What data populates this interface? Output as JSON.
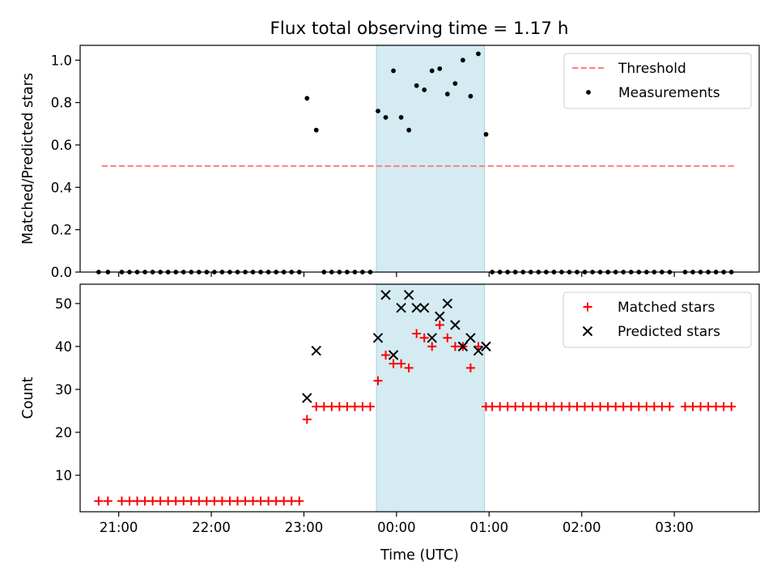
{
  "title": "Flux total observing time = 1.17 h",
  "colors": {
    "threshold": "#ff7f7f",
    "measurement": "#000000",
    "matched": "#ff0000",
    "predicted": "#000000",
    "observing_band": "#add8e6"
  },
  "chart_data": [
    {
      "type": "scatter",
      "panel": "top",
      "ylabel": "Matched/Predicted stars",
      "xlim": [
        "20:35",
        "03:55"
      ],
      "ylim": [
        0,
        1.07
      ],
      "yticks": [
        "0.0",
        "0.2",
        "0.4",
        "0.6",
        "0.8",
        "1.0"
      ],
      "grid": false,
      "legend_position": "top-right",
      "observing_window": [
        "23:47",
        "00:57"
      ],
      "threshold": {
        "name": "Threshold",
        "y": 0.5,
        "x_range": [
          "20:49",
          "03:40"
        ]
      },
      "series": [
        {
          "name": "Measurements",
          "points": [
            [
              "20:47",
              0.0
            ],
            [
              "20:53",
              0.0
            ],
            [
              "21:02",
              0.0
            ],
            [
              "21:07",
              0.0
            ],
            [
              "21:12",
              0.0
            ],
            [
              "21:17",
              0.0
            ],
            [
              "21:22",
              0.0
            ],
            [
              "21:27",
              0.0
            ],
            [
              "21:32",
              0.0
            ],
            [
              "21:37",
              0.0
            ],
            [
              "21:42",
              0.0
            ],
            [
              "21:47",
              0.0
            ],
            [
              "21:52",
              0.0
            ],
            [
              "21:57",
              0.0
            ],
            [
              "22:02",
              0.0
            ],
            [
              "22:07",
              0.0
            ],
            [
              "22:12",
              0.0
            ],
            [
              "22:17",
              0.0
            ],
            [
              "22:22",
              0.0
            ],
            [
              "22:27",
              0.0
            ],
            [
              "22:32",
              0.0
            ],
            [
              "22:37",
              0.0
            ],
            [
              "22:42",
              0.0
            ],
            [
              "22:47",
              0.0
            ],
            [
              "22:52",
              0.0
            ],
            [
              "22:57",
              0.0
            ],
            [
              "23:02",
              0.82
            ],
            [
              "23:08",
              0.67
            ],
            [
              "23:13",
              0.0
            ],
            [
              "23:18",
              0.0
            ],
            [
              "23:23",
              0.0
            ],
            [
              "23:28",
              0.0
            ],
            [
              "23:33",
              0.0
            ],
            [
              "23:38",
              0.0
            ],
            [
              "23:43",
              0.0
            ],
            [
              "23:48",
              0.76
            ],
            [
              "23:53",
              0.73
            ],
            [
              "23:58",
              0.95
            ],
            [
              "00:03",
              0.73
            ],
            [
              "00:08",
              0.67
            ],
            [
              "00:13",
              0.88
            ],
            [
              "00:18",
              0.86
            ],
            [
              "00:23",
              0.95
            ],
            [
              "00:28",
              0.96
            ],
            [
              "00:33",
              0.84
            ],
            [
              "00:38",
              0.89
            ],
            [
              "00:43",
              1.0
            ],
            [
              "00:48",
              0.83
            ],
            [
              "00:53",
              1.03
            ],
            [
              "00:58",
              0.65
            ],
            [
              "01:02",
              0.0
            ],
            [
              "01:07",
              0.0
            ],
            [
              "01:12",
              0.0
            ],
            [
              "01:17",
              0.0
            ],
            [
              "01:22",
              0.0
            ],
            [
              "01:27",
              0.0
            ],
            [
              "01:32",
              0.0
            ],
            [
              "01:37",
              0.0
            ],
            [
              "01:42",
              0.0
            ],
            [
              "01:47",
              0.0
            ],
            [
              "01:52",
              0.0
            ],
            [
              "01:57",
              0.0
            ],
            [
              "02:02",
              0.0
            ],
            [
              "02:07",
              0.0
            ],
            [
              "02:12",
              0.0
            ],
            [
              "02:17",
              0.0
            ],
            [
              "02:22",
              0.0
            ],
            [
              "02:27",
              0.0
            ],
            [
              "02:32",
              0.0
            ],
            [
              "02:37",
              0.0
            ],
            [
              "02:42",
              0.0
            ],
            [
              "02:47",
              0.0
            ],
            [
              "02:52",
              0.0
            ],
            [
              "02:57",
              0.0
            ],
            [
              "03:07",
              0.0
            ],
            [
              "03:12",
              0.0
            ],
            [
              "03:17",
              0.0
            ],
            [
              "03:22",
              0.0
            ],
            [
              "03:27",
              0.0
            ],
            [
              "03:32",
              0.0
            ],
            [
              "03:37",
              0.0
            ]
          ]
        }
      ]
    },
    {
      "type": "scatter",
      "panel": "bottom",
      "xlabel": "Time (UTC)",
      "ylabel": "Count",
      "xlim": [
        "20:35",
        "03:55"
      ],
      "ylim": [
        1.5,
        54.5
      ],
      "xticks": [
        "21:00",
        "22:00",
        "23:00",
        "00:00",
        "01:00",
        "02:00",
        "03:00"
      ],
      "yticks": [
        "10",
        "20",
        "30",
        "40",
        "50"
      ],
      "grid": false,
      "legend_position": "top-right",
      "observing_window": [
        "23:47",
        "00:57"
      ],
      "series": [
        {
          "name": "Matched stars",
          "marker": "plus",
          "points": [
            [
              "20:47",
              4
            ],
            [
              "20:53",
              4
            ],
            [
              "21:02",
              4
            ],
            [
              "21:07",
              4
            ],
            [
              "21:12",
              4
            ],
            [
              "21:17",
              4
            ],
            [
              "21:22",
              4
            ],
            [
              "21:27",
              4
            ],
            [
              "21:32",
              4
            ],
            [
              "21:37",
              4
            ],
            [
              "21:42",
              4
            ],
            [
              "21:47",
              4
            ],
            [
              "21:52",
              4
            ],
            [
              "21:57",
              4
            ],
            [
              "22:02",
              4
            ],
            [
              "22:07",
              4
            ],
            [
              "22:12",
              4
            ],
            [
              "22:17",
              4
            ],
            [
              "22:22",
              4
            ],
            [
              "22:27",
              4
            ],
            [
              "22:32",
              4
            ],
            [
              "22:37",
              4
            ],
            [
              "22:42",
              4
            ],
            [
              "22:47",
              4
            ],
            [
              "22:52",
              4
            ],
            [
              "22:57",
              4
            ],
            [
              "23:02",
              23
            ],
            [
              "23:08",
              26
            ],
            [
              "23:13",
              26
            ],
            [
              "23:18",
              26
            ],
            [
              "23:23",
              26
            ],
            [
              "23:28",
              26
            ],
            [
              "23:33",
              26
            ],
            [
              "23:38",
              26
            ],
            [
              "23:43",
              26
            ],
            [
              "23:48",
              32
            ],
            [
              "23:53",
              38
            ],
            [
              "23:58",
              36
            ],
            [
              "00:03",
              36
            ],
            [
              "00:08",
              35
            ],
            [
              "00:13",
              43
            ],
            [
              "00:18",
              42
            ],
            [
              "00:23",
              40
            ],
            [
              "00:28",
              45
            ],
            [
              "00:33",
              42
            ],
            [
              "00:38",
              40
            ],
            [
              "00:43",
              40
            ],
            [
              "00:48",
              35
            ],
            [
              "00:53",
              40
            ],
            [
              "00:58",
              26
            ],
            [
              "01:02",
              26
            ],
            [
              "01:07",
              26
            ],
            [
              "01:12",
              26
            ],
            [
              "01:17",
              26
            ],
            [
              "01:22",
              26
            ],
            [
              "01:27",
              26
            ],
            [
              "01:32",
              26
            ],
            [
              "01:37",
              26
            ],
            [
              "01:42",
              26
            ],
            [
              "01:47",
              26
            ],
            [
              "01:52",
              26
            ],
            [
              "01:57",
              26
            ],
            [
              "02:02",
              26
            ],
            [
              "02:07",
              26
            ],
            [
              "02:12",
              26
            ],
            [
              "02:17",
              26
            ],
            [
              "02:22",
              26
            ],
            [
              "02:27",
              26
            ],
            [
              "02:32",
              26
            ],
            [
              "02:37",
              26
            ],
            [
              "02:42",
              26
            ],
            [
              "02:47",
              26
            ],
            [
              "02:52",
              26
            ],
            [
              "02:57",
              26
            ],
            [
              "03:07",
              26
            ],
            [
              "03:12",
              26
            ],
            [
              "03:17",
              26
            ],
            [
              "03:22",
              26
            ],
            [
              "03:27",
              26
            ],
            [
              "03:32",
              26
            ],
            [
              "03:37",
              26
            ]
          ]
        },
        {
          "name": "Predicted stars",
          "marker": "x",
          "points": [
            [
              "23:02",
              28
            ],
            [
              "23:08",
              39
            ],
            [
              "23:48",
              42
            ],
            [
              "23:53",
              52
            ],
            [
              "23:58",
              38
            ],
            [
              "00:03",
              49
            ],
            [
              "00:08",
              52
            ],
            [
              "00:13",
              49
            ],
            [
              "00:18",
              49
            ],
            [
              "00:23",
              42
            ],
            [
              "00:28",
              47
            ],
            [
              "00:33",
              50
            ],
            [
              "00:38",
              45
            ],
            [
              "00:43",
              40
            ],
            [
              "00:48",
              42
            ],
            [
              "00:53",
              39
            ],
            [
              "00:58",
              40
            ]
          ]
        }
      ]
    }
  ]
}
